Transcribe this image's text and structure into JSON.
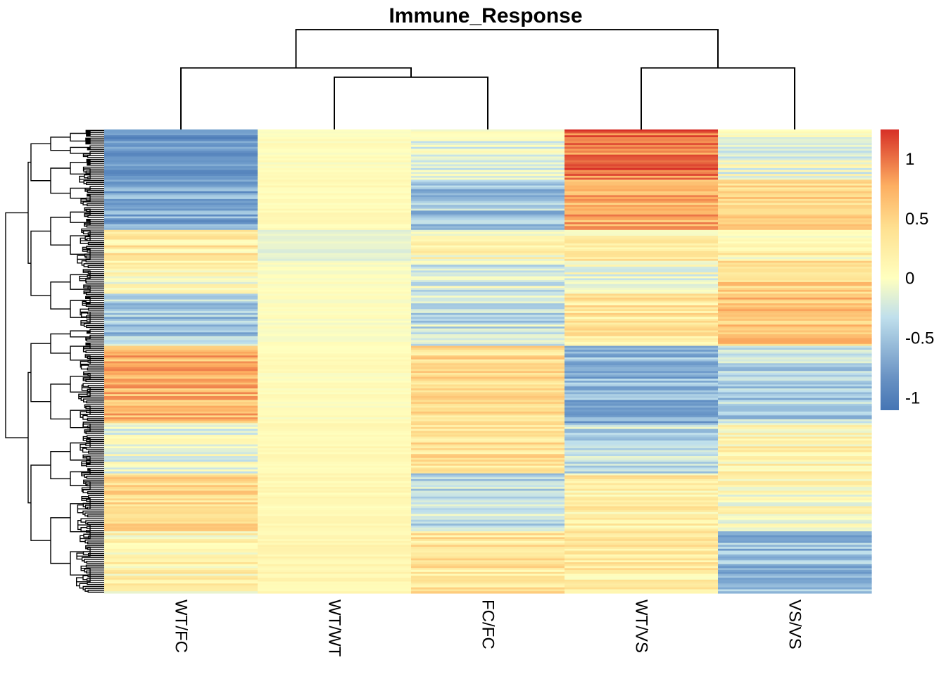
{
  "chart_data": {
    "type": "heatmap",
    "title": "Immune_Response",
    "columns": [
      "WT/FC",
      "WT/WT",
      "FC/FC",
      "WT/VS",
      "VS/VS"
    ],
    "row_count": 240,
    "colorbar": {
      "range": [
        -1.1,
        1.25
      ],
      "ticks": [
        {
          "value": 1,
          "label": "1"
        },
        {
          "value": 0.5,
          "label": "0.5"
        },
        {
          "value": 0,
          "label": "0"
        },
        {
          "value": -0.5,
          "label": "-0.5"
        },
        {
          "value": -1,
          "label": "-1"
        }
      ],
      "colors": {
        "low": "#4575b4",
        "mid_low": "#91bfdb",
        "mid": "#ffffbf",
        "mid_high": "#fdae61",
        "high": "#d73027"
      }
    },
    "column_dendrogram": {
      "order": [
        "WT/FC",
        "WT/WT",
        "FC/FC",
        "WT/VS",
        "VS/VS"
      ],
      "merges": [
        {
          "left": "WT/WT",
          "right": "FC/FC",
          "height": 0.45
        },
        {
          "left": "WT/FC",
          "right": "WT/WT+FC/FC",
          "height": 0.53
        },
        {
          "left": "WT/VS",
          "right": "VS/VS",
          "height": 0.53
        },
        {
          "left": "WT/FC+WT/WT+FC/FC",
          "right": "WT/VS+VS/VS",
          "height": 0.86
        }
      ]
    },
    "row_blocks": [
      {
        "rows": [
          0,
          26
        ],
        "values": [
          -0.8,
          0.02,
          -0.15,
          1.0,
          -0.1
        ]
      },
      {
        "rows": [
          26,
          52
        ],
        "values": [
          -0.7,
          0.05,
          -0.45,
          0.75,
          0.45
        ]
      },
      {
        "rows": [
          52,
          68
        ],
        "values": [
          0.25,
          -0.15,
          0.05,
          0.2,
          0.15
        ]
      },
      {
        "rows": [
          68,
          85
        ],
        "values": [
          0.05,
          0.0,
          -0.2,
          -0.05,
          0.5
        ]
      },
      {
        "rows": [
          85,
          112
        ],
        "values": [
          -0.45,
          0.0,
          -0.3,
          0.3,
          0.6
        ]
      },
      {
        "rows": [
          112,
          152
        ],
        "values": [
          0.7,
          0.03,
          0.4,
          -0.6,
          -0.4
        ]
      },
      {
        "rows": [
          152,
          178
        ],
        "values": [
          -0.1,
          0.08,
          0.35,
          -0.3,
          0.15
        ]
      },
      {
        "rows": [
          178,
          208
        ],
        "values": [
          0.4,
          0.08,
          -0.3,
          0.2,
          0.05
        ]
      },
      {
        "rows": [
          208,
          240
        ],
        "values": [
          0.15,
          0.12,
          0.3,
          0.25,
          -0.55
        ]
      }
    ]
  }
}
